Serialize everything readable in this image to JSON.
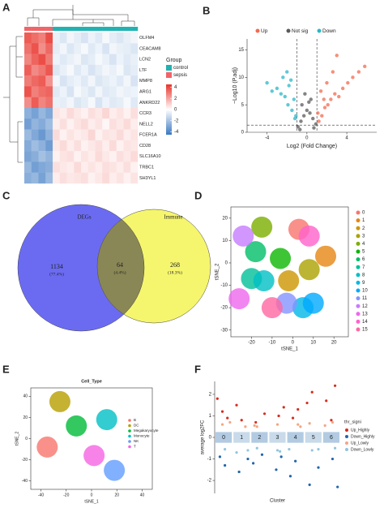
{
  "heatmap": {
    "label": "A",
    "group_title": "Group",
    "genes": [
      "OLFM4",
      "CEACAM8",
      "LCN2",
      "LTF",
      "MMP8",
      "ARG1",
      "ANKRD22",
      "CCR3",
      "NELL2",
      "FCER1A",
      "CD28",
      "SLC16A10",
      "TRBC1",
      "SH3YL1"
    ],
    "groups": [
      {
        "name": "control",
        "color": "#20b2b2"
      },
      {
        "name": "sepsis",
        "color": "#f0646a"
      }
    ],
    "column_groups": [
      1,
      1,
      1,
      1,
      0,
      0,
      0,
      0,
      0,
      0,
      0,
      0,
      0,
      0,
      0,
      0
    ],
    "matrix": [
      [
        3.6,
        3.2,
        2.8,
        3.9,
        -0.5,
        -0.8,
        -0.3,
        -0.6,
        -0.9,
        -0.4,
        -0.7,
        -0.2,
        -0.6,
        -0.8,
        -0.5,
        -0.3
      ],
      [
        3.1,
        3.8,
        2.5,
        3.3,
        -0.6,
        -0.3,
        -0.8,
        -0.5,
        -0.2,
        -0.7,
        -0.4,
        -0.9,
        -0.3,
        -0.5,
        -0.6,
        -0.8
      ],
      [
        2.7,
        3.4,
        3.9,
        2.9,
        -0.4,
        -0.7,
        -0.5,
        -0.3,
        -0.8,
        -0.6,
        -0.2,
        -0.5,
        -0.9,
        -0.4,
        -0.7,
        -0.5
      ],
      [
        3.5,
        2.6,
        3.0,
        3.7,
        -0.8,
        -0.5,
        -0.2,
        -0.7,
        -0.4,
        -0.9,
        -0.6,
        -0.3,
        -0.5,
        -0.2,
        -0.8,
        -0.6
      ],
      [
        2.9,
        3.3,
        3.6,
        2.4,
        -0.3,
        -0.9,
        -0.6,
        -0.4,
        -0.7,
        -0.3,
        -0.8,
        -0.6,
        -0.4,
        -0.7,
        -0.3,
        -0.9
      ],
      [
        3.8,
        2.8,
        3.2,
        3.4,
        -0.7,
        -0.4,
        -0.9,
        -0.2,
        -0.5,
        -0.8,
        -0.3,
        -0.7,
        -0.6,
        -0.3,
        -0.5,
        -0.4
      ],
      [
        2.5,
        3.6,
        2.7,
        3.1,
        -0.5,
        -0.6,
        -0.3,
        -0.8,
        -0.6,
        -0.2,
        -0.9,
        -0.4,
        -0.7,
        -0.6,
        -0.2,
        -0.7
      ],
      [
        -2.6,
        -3.1,
        -2.4,
        -2.9,
        0.6,
        0.4,
        0.8,
        0.5,
        0.3,
        0.7,
        0.5,
        0.9,
        0.4,
        0.6,
        0.3,
        0.7
      ],
      [
        -3.2,
        -2.5,
        -2.8,
        -2.2,
        0.4,
        0.7,
        0.3,
        0.6,
        0.8,
        0.4,
        0.6,
        0.2,
        0.7,
        0.5,
        0.8,
        0.4
      ],
      [
        -2.3,
        -2.9,
        -3.4,
        -2.6,
        0.8,
        0.3,
        0.6,
        0.4,
        0.5,
        0.9,
        0.3,
        0.6,
        0.5,
        0.8,
        0.4,
        0.6
      ],
      [
        -2.8,
        -2.2,
        -2.6,
        -3.3,
        0.5,
        0.8,
        0.4,
        0.7,
        0.3,
        0.5,
        0.7,
        0.4,
        0.8,
        0.3,
        0.6,
        0.5
      ],
      [
        -3.0,
        -2.7,
        -2.1,
        -2.5,
        0.3,
        0.6,
        0.7,
        0.3,
        0.6,
        0.4,
        0.8,
        0.5,
        0.3,
        0.7,
        0.5,
        0.8
      ],
      [
        -2.4,
        -3.2,
        -2.9,
        -2.7,
        0.7,
        0.5,
        0.4,
        0.8,
        0.4,
        0.6,
        0.4,
        0.7,
        0.6,
        0.4,
        0.7,
        0.3
      ],
      [
        -2.7,
        -2.4,
        -3.1,
        -2.3,
        0.4,
        0.7,
        0.5,
        0.6,
        0.7,
        0.3,
        0.5,
        0.8,
        0.4,
        0.6,
        0.3,
        0.6
      ]
    ],
    "colors": [
      "#3a78c2",
      "#ffffff",
      "#e8332b"
    ],
    "clim": [
      -4.5,
      4.5
    ],
    "colorbar_ticks": [
      4,
      2,
      0,
      -2,
      -4
    ]
  },
  "volcano": {
    "label": "B",
    "type": "scatter",
    "ylabel": "−Log10 (P.adj)",
    "xlabel": "Log2 (Fold Change)",
    "xlim": [
      -6,
      7
    ],
    "ylim": [
      0,
      17
    ],
    "xticks": [
      -4,
      0,
      4
    ],
    "yticks": [
      0,
      5,
      10,
      15
    ],
    "cutoff_x": [
      -1,
      1
    ],
    "cutoff_y": 1.3,
    "series": [
      {
        "name": "Up",
        "color": "#f26b4f",
        "x": [
          1.2,
          1.5,
          1.8,
          2.1,
          2.4,
          2.8,
          3.2,
          3.6,
          4.1,
          4.6,
          5.2,
          5.8,
          1.4,
          2.0,
          2.6,
          3.0,
          1.1,
          1.7
        ],
        "values": [
          2,
          3,
          4.5,
          5,
          6,
          7,
          6.5,
          8,
          9,
          10,
          11,
          12,
          7.5,
          9,
          11,
          14,
          3.5,
          6
        ]
      },
      {
        "name": "Not sig",
        "color": "#5a5a5a",
        "x": [
          -0.9,
          -0.6,
          -0.3,
          0,
          0.3,
          0.6,
          0.9,
          -0.5,
          0.4,
          -0.2,
          0.2,
          -0.7,
          0.7
        ],
        "values": [
          1,
          2,
          3,
          4,
          3.5,
          2.5,
          1.5,
          5,
          6,
          7,
          5.5,
          0.5,
          0.8
        ]
      },
      {
        "name": "Down",
        "color": "#2ab7ca",
        "x": [
          -1.2,
          -1.5,
          -1.9,
          -2.2,
          -2.6,
          -3.0,
          -3.5,
          -4.0,
          -1.3,
          -1.8,
          -2.4,
          -1.1,
          -1.6,
          -2.0
        ],
        "values": [
          2.5,
          4,
          5,
          6.5,
          7,
          8,
          7.5,
          9,
          6,
          8.5,
          10,
          3,
          9.5,
          11
        ]
      }
    ]
  },
  "venn": {
    "label": "C",
    "sets": [
      {
        "name": "DEGs",
        "color": "#6b6bf2"
      },
      {
        "name": "Immune",
        "color": "#f6f66e"
      }
    ],
    "regions": [
      {
        "count": 1134,
        "percent": "(77.4%)"
      },
      {
        "count": 64,
        "percent": "(4.4%)"
      },
      {
        "count": 268,
        "percent": "(18.3%)"
      }
    ]
  },
  "tsne": {
    "label": "D",
    "type": "scatter",
    "xlabel": "tSNE_1",
    "ylabel": "tSNE_2",
    "xlim": [
      -30,
      27
    ],
    "ylim": [
      -33,
      25
    ],
    "xticks": [
      -20,
      -10,
      0,
      10,
      20
    ],
    "yticks": [
      -30,
      -20,
      -10,
      0,
      10,
      20
    ],
    "series": [
      {
        "name": "0",
        "color": "#F8766D",
        "x": [
          3
        ],
        "values": [
          15
        ]
      },
      {
        "name": "1",
        "color": "#E68613",
        "x": [
          16
        ],
        "values": [
          3
        ]
      },
      {
        "name": "2",
        "color": "#CD9600",
        "x": [
          -2
        ],
        "values": [
          -8
        ]
      },
      {
        "name": "3",
        "color": "#ABA300",
        "x": [
          8
        ],
        "values": [
          -3
        ]
      },
      {
        "name": "4",
        "color": "#7CAE00",
        "x": [
          -15
        ],
        "values": [
          16
        ]
      },
      {
        "name": "5",
        "color": "#0CB702",
        "x": [
          -6
        ],
        "values": [
          2
        ]
      },
      {
        "name": "6",
        "color": "#00BE67",
        "x": [
          -18
        ],
        "values": [
          5
        ]
      },
      {
        "name": "7",
        "color": "#00C19A",
        "x": [
          -20
        ],
        "values": [
          -7
        ]
      },
      {
        "name": "8",
        "color": "#00BFC4",
        "x": [
          -14
        ],
        "values": [
          -8
        ]
      },
      {
        "name": "9",
        "color": "#00B8E7",
        "x": [
          5
        ],
        "values": [
          -20
        ]
      },
      {
        "name": "10",
        "color": "#00A9FF",
        "x": [
          10
        ],
        "values": [
          -18
        ]
      },
      {
        "name": "11",
        "color": "#8494FF",
        "x": [
          -3
        ],
        "values": [
          -18
        ]
      },
      {
        "name": "12",
        "color": "#C77CFF",
        "x": [
          -24
        ],
        "values": [
          12
        ]
      },
      {
        "name": "13",
        "color": "#ED68ED",
        "x": [
          -26
        ],
        "values": [
          -16
        ]
      },
      {
        "name": "14",
        "color": "#FF61CC",
        "x": [
          8
        ],
        "values": [
          12
        ]
      },
      {
        "name": "15",
        "color": "#FF68A1",
        "x": [
          -10
        ],
        "values": [
          -20
        ]
      }
    ]
  },
  "cell_type": {
    "label": "E",
    "type": "scatter",
    "title": "Cell_Type",
    "xlabel": "tSNE_1",
    "ylabel": "tSNE_2",
    "xlim": [
      -48,
      48
    ],
    "ylim": [
      -48,
      48
    ],
    "xticks": [
      -40,
      -20,
      0,
      20,
      40
    ],
    "yticks": [
      -40,
      -20,
      0,
      20,
      40
    ],
    "series": [
      {
        "name": "B",
        "color": "#F8766D",
        "x": [
          -35
        ],
        "values": [
          -8
        ]
      },
      {
        "name": "DC",
        "color": "#B79F00",
        "x": [
          -25
        ],
        "values": [
          35
        ]
      },
      {
        "name": "Megakaryocyte",
        "color": "#00BA38",
        "x": [
          -12
        ],
        "values": [
          12
        ]
      },
      {
        "name": "Monocyte",
        "color": "#00BFC4",
        "x": [
          12
        ],
        "values": [
          18
        ]
      },
      {
        "name": "NK",
        "color": "#619CFF",
        "x": [
          18
        ],
        "values": [
          -30
        ]
      },
      {
        "name": "T",
        "color": "#F564E3",
        "x": [
          2
        ],
        "values": [
          -16
        ]
      }
    ]
  },
  "markers": {
    "label": "F",
    "type": "strip",
    "xlabel": "Cluster",
    "ylabel": "average log2FC",
    "legend_title": "thr_signi",
    "categories": [
      "0",
      "1",
      "2",
      "3",
      "4",
      "5",
      "6"
    ],
    "ylim": [
      -2.6,
      2.6
    ],
    "yticks": [
      -2,
      -1,
      0,
      1,
      2
    ],
    "series": [
      {
        "name": "Up_Highly",
        "color": "#d62d20",
        "x": [
          0,
          0,
          0,
          1,
          1,
          2,
          2,
          3,
          3,
          4,
          4,
          5,
          5,
          6,
          6,
          6
        ],
        "values": [
          1.8,
          1.2,
          0.9,
          1.5,
          0.8,
          1.1,
          0.7,
          1.0,
          1.4,
          0.9,
          1.3,
          1.6,
          2.1,
          2.4,
          1.7,
          0.8
        ]
      },
      {
        "name": "Down_Highly",
        "color": "#2166ac",
        "x": [
          0,
          0,
          1,
          1,
          2,
          2,
          3,
          3,
          4,
          4,
          5,
          5,
          6,
          6
        ],
        "values": [
          -0.9,
          -1.3,
          -1.0,
          -1.6,
          -0.8,
          -1.2,
          -1.5,
          -0.9,
          -1.8,
          -1.1,
          -1.4,
          -2.2,
          -1.0,
          -2.3
        ]
      },
      {
        "name": "Up_Lowly",
        "color": "#f4a582",
        "x": [
          0,
          1,
          2,
          3,
          4,
          5,
          6,
          0,
          2,
          4,
          6
        ],
        "values": [
          0.6,
          0.5,
          0.55,
          0.6,
          0.5,
          0.65,
          0.7,
          0.7,
          0.5,
          0.6,
          0.55
        ]
      },
      {
        "name": "Down_Lowly",
        "color": "#92c5de",
        "x": [
          0,
          1,
          2,
          3,
          4,
          5,
          6,
          1,
          3,
          5
        ],
        "values": [
          -0.55,
          -0.6,
          -0.5,
          -0.65,
          -0.55,
          -0.6,
          -0.5,
          -0.7,
          -0.6,
          -0.55
        ]
      }
    ]
  }
}
